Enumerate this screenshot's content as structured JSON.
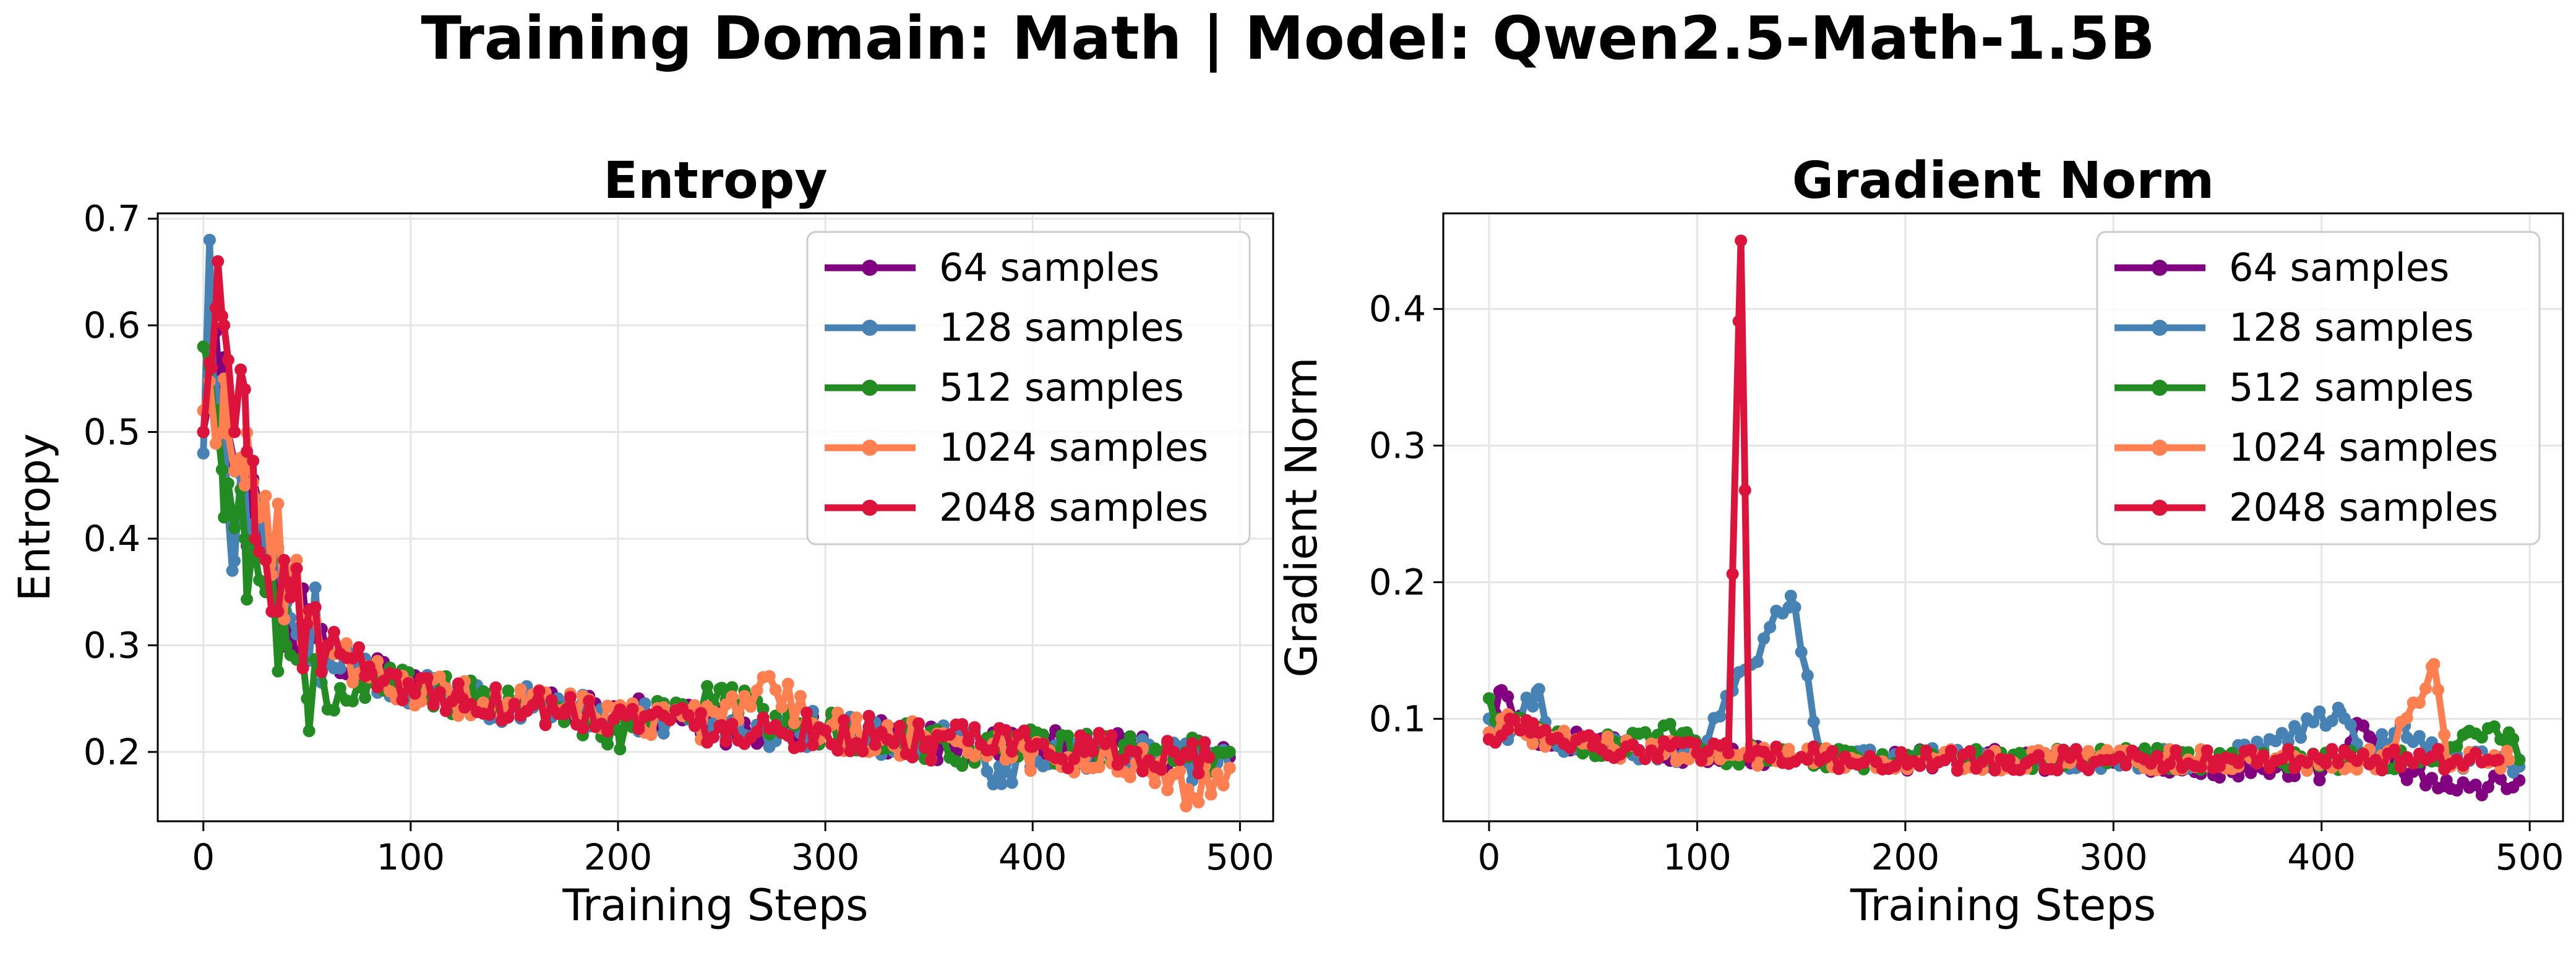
{
  "figure": {
    "title": "Training Domain: Math | Model: Qwen2.5-Math-1.5B"
  },
  "colors": {
    "64 samples": "#800080",
    "128 samples": "#4682b4",
    "512 samples": "#228b22",
    "1024 samples": "#ff7f50",
    "2048 samples": "#dc143c"
  },
  "chart_data": [
    {
      "type": "line",
      "title": "Entropy",
      "xlabel": "Training Steps",
      "ylabel": "Entropy",
      "xlim": [
        -22,
        516
      ],
      "ylim": [
        0.135,
        0.705
      ],
      "xticks": [
        0,
        100,
        200,
        300,
        400,
        500
      ],
      "yticks": [
        0.2,
        0.3,
        0.4,
        0.5,
        0.6,
        0.7
      ],
      "xtick_labels": [
        "0",
        "100",
        "200",
        "300",
        "400",
        "500"
      ],
      "ytick_labels": [
        "0.2",
        "0.3",
        "0.4",
        "0.5",
        "0.6",
        "0.7"
      ],
      "grid": true,
      "legend_position": "top-right",
      "legend": [
        "64 samples",
        "128 samples",
        "512 samples",
        "1024 samples",
        "2048 samples"
      ],
      "series": [
        {
          "name": "64 samples",
          "x": [
            0,
            10,
            20,
            30,
            40,
            50,
            60,
            80,
            100,
            125,
            150,
            175,
            200,
            225,
            250,
            275,
            300,
            325,
            350,
            375,
            400,
            425,
            450,
            475,
            495
          ],
          "y": [
            0.5,
            0.57,
            0.44,
            0.38,
            0.34,
            0.31,
            0.29,
            0.275,
            0.26,
            0.25,
            0.245,
            0.24,
            0.235,
            0.23,
            0.225,
            0.222,
            0.22,
            0.215,
            0.21,
            0.207,
            0.205,
            0.2,
            0.2,
            0.197,
            0.195
          ]
        },
        {
          "name": "128 samples",
          "x": [
            0,
            3,
            5,
            10,
            14,
            20,
            30,
            40,
            50,
            60,
            80,
            100,
            125,
            150,
            175,
            200,
            225,
            250,
            275,
            300,
            325,
            350,
            375,
            385,
            400,
            425,
            450,
            475,
            495
          ],
          "y": [
            0.48,
            0.68,
            0.54,
            0.5,
            0.37,
            0.45,
            0.39,
            0.34,
            0.31,
            0.29,
            0.275,
            0.26,
            0.25,
            0.245,
            0.24,
            0.235,
            0.23,
            0.225,
            0.222,
            0.22,
            0.215,
            0.21,
            0.207,
            0.17,
            0.205,
            0.2,
            0.2,
            0.19,
            0.185
          ]
        },
        {
          "name": "512 samples",
          "x": [
            0,
            5,
            10,
            20,
            30,
            40,
            50,
            60,
            80,
            100,
            125,
            150,
            175,
            200,
            225,
            250,
            275,
            300,
            325,
            350,
            375,
            400,
            425,
            450,
            475,
            495
          ],
          "y": [
            0.58,
            0.52,
            0.42,
            0.4,
            0.35,
            0.3,
            0.25,
            0.24,
            0.27,
            0.26,
            0.25,
            0.245,
            0.24,
            0.22,
            0.235,
            0.26,
            0.22,
            0.22,
            0.215,
            0.21,
            0.2,
            0.205,
            0.2,
            0.2,
            0.195,
            0.2
          ]
        },
        {
          "name": "1024 samples",
          "x": [
            0,
            10,
            20,
            30,
            40,
            50,
            60,
            80,
            100,
            125,
            150,
            175,
            200,
            225,
            250,
            270,
            300,
            325,
            350,
            375,
            400,
            425,
            450,
            475,
            495
          ],
          "y": [
            0.52,
            0.55,
            0.45,
            0.44,
            0.36,
            0.33,
            0.3,
            0.27,
            0.26,
            0.25,
            0.245,
            0.24,
            0.235,
            0.23,
            0.225,
            0.27,
            0.22,
            0.215,
            0.21,
            0.205,
            0.2,
            0.195,
            0.19,
            0.165,
            0.185
          ]
        },
        {
          "name": "2048 samples",
          "x": [
            0,
            4,
            7,
            10,
            15,
            20,
            25,
            30,
            40,
            50,
            60,
            80,
            100,
            125,
            150,
            175,
            200,
            225,
            250,
            275,
            300,
            325,
            350,
            375,
            400,
            425,
            450,
            475,
            485
          ],
          "y": [
            0.5,
            0.56,
            0.66,
            0.6,
            0.5,
            0.54,
            0.4,
            0.38,
            0.36,
            0.32,
            0.3,
            0.28,
            0.26,
            0.25,
            0.245,
            0.24,
            0.235,
            0.23,
            0.225,
            0.222,
            0.22,
            0.215,
            0.21,
            0.207,
            0.205,
            0.2,
            0.2,
            0.197,
            0.195
          ]
        }
      ]
    },
    {
      "type": "line",
      "title": "Gradient Norm",
      "xlabel": "Training Steps",
      "ylabel": "Gradient Norm",
      "xlim": [
        -22,
        516
      ],
      "ylim": [
        0.025,
        0.47
      ],
      "xticks": [
        0,
        100,
        200,
        300,
        400,
        500
      ],
      "yticks": [
        0.1,
        0.2,
        0.3,
        0.4
      ],
      "xtick_labels": [
        "0",
        "100",
        "200",
        "300",
        "400",
        "500"
      ],
      "ytick_labels": [
        "0.1",
        "0.2",
        "0.3",
        "0.4"
      ],
      "grid": true,
      "legend_position": "top-right",
      "legend": [
        "64 samples",
        "128 samples",
        "512 samples",
        "1024 samples",
        "2048 samples"
      ],
      "series": [
        {
          "name": "64 samples",
          "x": [
            0,
            5,
            20,
            50,
            100,
            150,
            200,
            250,
            300,
            350,
            400,
            420,
            440,
            460,
            480,
            495
          ],
          "y": [
            0.1,
            0.12,
            0.09,
            0.08,
            0.075,
            0.072,
            0.07,
            0.07,
            0.068,
            0.065,
            0.062,
            0.095,
            0.06,
            0.055,
            0.05,
            0.055
          ]
        },
        {
          "name": "128 samples",
          "x": [
            0,
            10,
            23,
            30,
            50,
            100,
            145,
            160,
            200,
            250,
            300,
            350,
            375,
            409,
            420,
            440,
            460,
            480,
            495
          ],
          "y": [
            0.1,
            0.09,
            0.12,
            0.085,
            0.08,
            0.075,
            0.19,
            0.075,
            0.072,
            0.07,
            0.07,
            0.07,
            0.085,
            0.105,
            0.07,
            0.095,
            0.07,
            0.068,
            0.065
          ]
        },
        {
          "name": "512 samples",
          "x": [
            0,
            5,
            20,
            50,
            95,
            100,
            150,
            200,
            250,
            300,
            350,
            400,
            450,
            470,
            490,
            495
          ],
          "y": [
            0.115,
            0.1,
            0.09,
            0.08,
            0.09,
            0.075,
            0.072,
            0.07,
            0.07,
            0.072,
            0.07,
            0.07,
            0.07,
            0.09,
            0.09,
            0.07
          ]
        },
        {
          "name": "1024 samples",
          "x": [
            0,
            10,
            20,
            50,
            100,
            150,
            200,
            250,
            300,
            350,
            400,
            430,
            454,
            460,
            480,
            490
          ],
          "y": [
            0.09,
            0.1,
            0.09,
            0.08,
            0.075,
            0.072,
            0.07,
            0.07,
            0.07,
            0.07,
            0.07,
            0.07,
            0.14,
            0.07,
            0.068,
            0.07
          ]
        },
        {
          "name": "2048 samples",
          "x": [
            0,
            10,
            20,
            30,
            50,
            100,
            115,
            121,
            125,
            150,
            200,
            250,
            300,
            350,
            400,
            450,
            480,
            485
          ],
          "y": [
            0.085,
            0.1,
            0.09,
            0.085,
            0.08,
            0.075,
            0.075,
            0.45,
            0.072,
            0.072,
            0.07,
            0.07,
            0.07,
            0.07,
            0.07,
            0.07,
            0.07,
            0.07
          ]
        }
      ]
    }
  ]
}
